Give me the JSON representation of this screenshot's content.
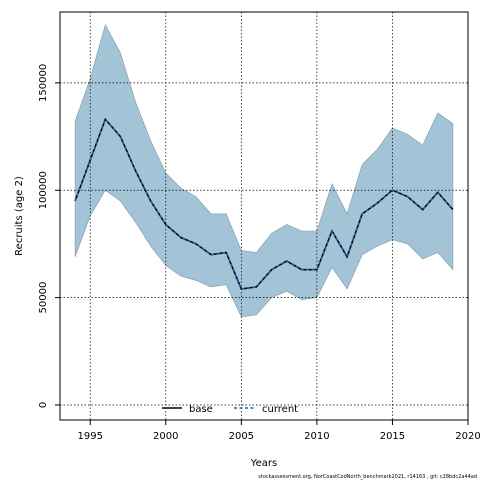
{
  "chart_data": {
    "type": "area",
    "xlabel": "Years",
    "ylabel": "Recruits (age 2)",
    "xlim": [
      1993,
      2020
    ],
    "ylim": [
      -7000,
      183000
    ],
    "xticks": [
      1995,
      2000,
      2005,
      2010,
      2015,
      2020
    ],
    "yticks": [
      0,
      50000,
      100000,
      150000
    ],
    "grid": true,
    "legend_position": "bottom-center",
    "footnote": "stockassessment.org,  NorCoastCodNorth_benchmark2021,  r14163 ,  git:  c28bdc2a44ad",
    "x": [
      1994,
      1995,
      1996,
      1997,
      1998,
      1999,
      2000,
      2001,
      2002,
      2003,
      2004,
      2005,
      2006,
      2007,
      2008,
      2009,
      2010,
      2011,
      2012,
      2013,
      2014,
      2015,
      2016,
      2017,
      2018,
      2019
    ],
    "band": {
      "color": "#a3c4d6",
      "edge_color": "#7f97a4",
      "upper": [
        132000,
        152000,
        177000,
        164000,
        141000,
        123000,
        108000,
        101000,
        97000,
        89000,
        89000,
        72000,
        71000,
        80000,
        84000,
        81000,
        81000,
        103000,
        89000,
        112000,
        119000,
        129000,
        126000,
        121000,
        136000,
        131000
      ],
      "lower": [
        69000,
        88000,
        100000,
        95000,
        85000,
        74000,
        65000,
        60000,
        58000,
        55000,
        56000,
        41000,
        42000,
        50000,
        53000,
        49000,
        50000,
        64000,
        54000,
        70000,
        74000,
        77000,
        75000,
        68000,
        71000,
        63000
      ]
    },
    "series": [
      {
        "name": "base",
        "color": "#000000",
        "style": "solid",
        "values": [
          95000,
          114000,
          133000,
          125000,
          109000,
          95000,
          84000,
          78000,
          75000,
          70000,
          71000,
          54000,
          55000,
          63000,
          67000,
          63000,
          63000,
          81000,
          69000,
          89000,
          94000,
          100000,
          97000,
          91000,
          99000,
          91000
        ]
      },
      {
        "name": "current",
        "color": "#1f5fa8",
        "style": "dashed",
        "values": [
          95000,
          114000,
          133000,
          125000,
          109000,
          95000,
          84000,
          78000,
          75000,
          70000,
          71000,
          54000,
          55000,
          63000,
          67000,
          63000,
          63000,
          81000,
          69000,
          89000,
          94000,
          100000,
          97000,
          91000,
          99000,
          91000
        ]
      }
    ]
  }
}
